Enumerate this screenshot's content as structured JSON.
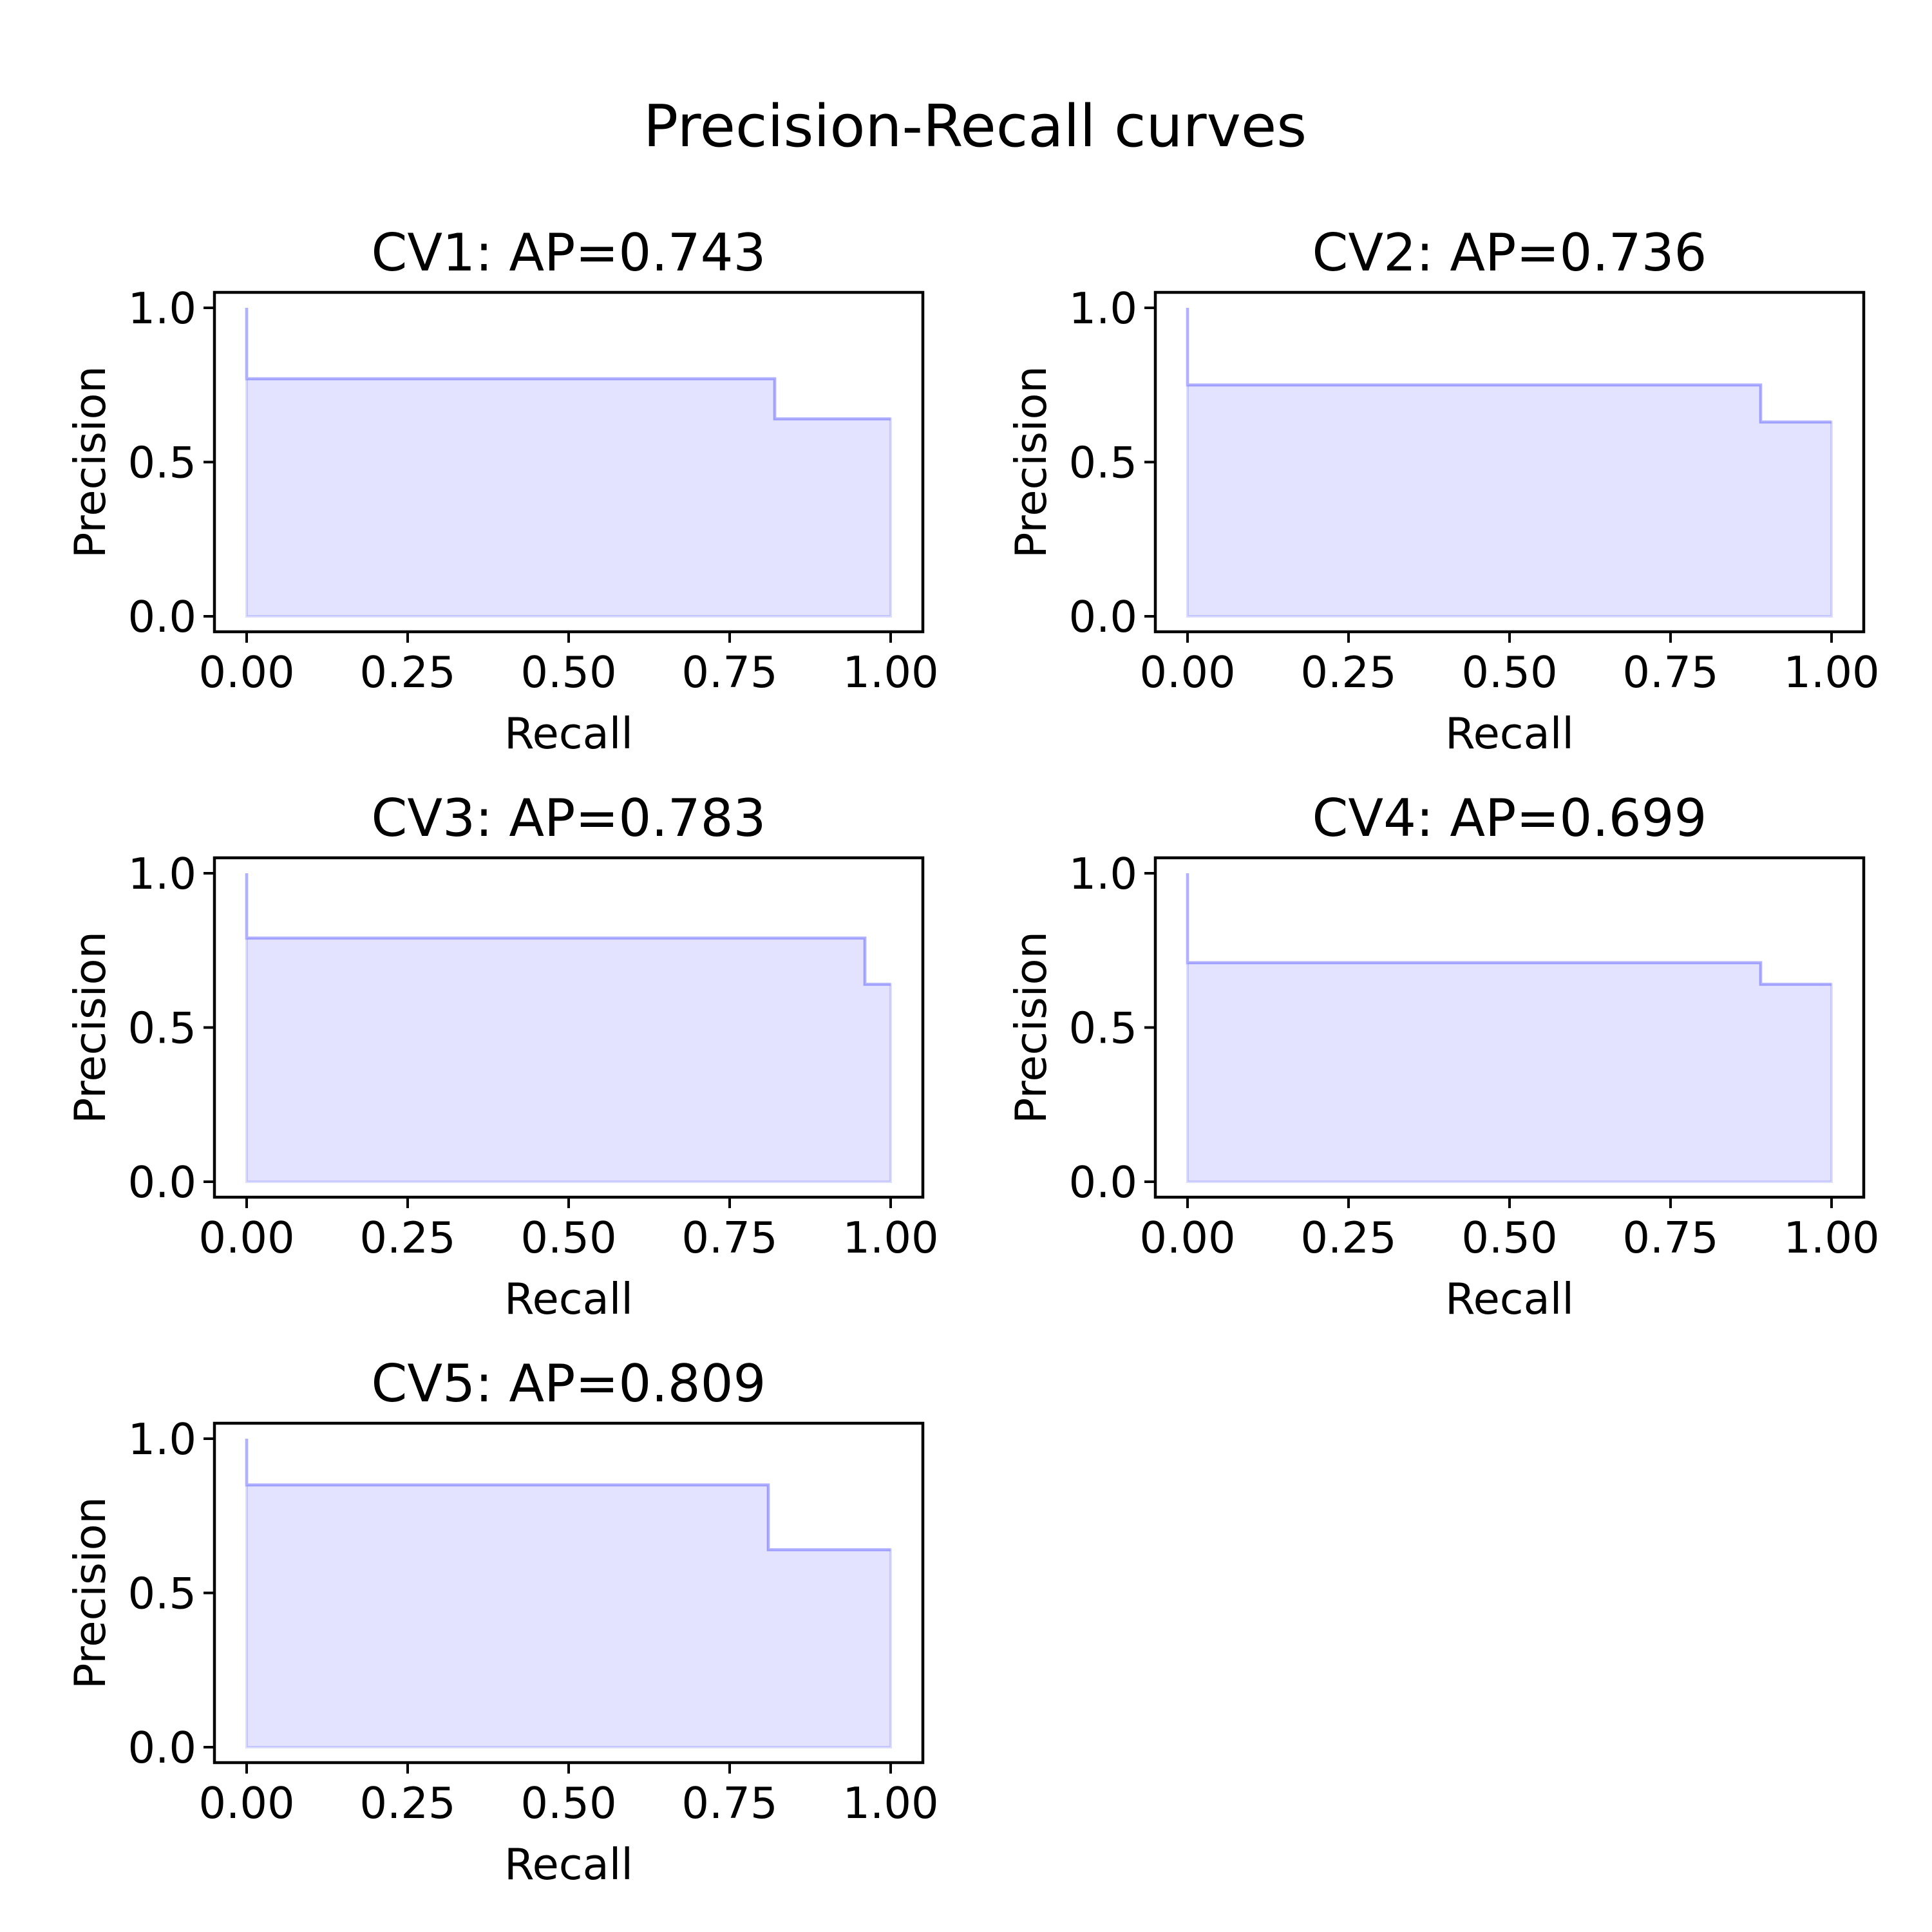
{
  "suptitle": "Precision-Recall curves",
  "chart_data": [
    {
      "type": "area",
      "title": "CV1: AP=0.743",
      "xlabel": "Recall",
      "ylabel": "Precision",
      "xlim": [
        -0.05,
        1.05
      ],
      "ylim": [
        -0.05,
        1.05
      ],
      "xticks": [
        0.0,
        0.25,
        0.5,
        0.75,
        1.0
      ],
      "xtick_labels": [
        "0.00",
        "0.25",
        "0.50",
        "0.75",
        "1.00"
      ],
      "yticks": [
        0.0,
        0.5,
        1.0
      ],
      "ytick_labels": [
        "0.0",
        "0.5",
        "1.0"
      ],
      "step": "post",
      "recall": [
        0.0,
        0.0,
        0.82,
        0.82,
        1.0
      ],
      "precision": [
        1.0,
        0.77,
        0.77,
        0.64,
        0.64
      ],
      "color": "#0000ff",
      "grid": false
    },
    {
      "type": "area",
      "title": "CV2: AP=0.736",
      "xlabel": "Recall",
      "ylabel": "Precision",
      "xlim": [
        -0.05,
        1.05
      ],
      "ylim": [
        -0.05,
        1.05
      ],
      "xticks": [
        0.0,
        0.25,
        0.5,
        0.75,
        1.0
      ],
      "xtick_labels": [
        "0.00",
        "0.25",
        "0.50",
        "0.75",
        "1.00"
      ],
      "yticks": [
        0.0,
        0.5,
        1.0
      ],
      "ytick_labels": [
        "0.0",
        "0.5",
        "1.0"
      ],
      "step": "post",
      "recall": [
        0.0,
        0.0,
        0.89,
        0.89,
        1.0
      ],
      "precision": [
        1.0,
        0.75,
        0.75,
        0.63,
        0.63
      ],
      "color": "#0000ff",
      "grid": false
    },
    {
      "type": "area",
      "title": "CV3: AP=0.783",
      "xlabel": "Recall",
      "ylabel": "Precision",
      "xlim": [
        -0.05,
        1.05
      ],
      "ylim": [
        -0.05,
        1.05
      ],
      "xticks": [
        0.0,
        0.25,
        0.5,
        0.75,
        1.0
      ],
      "xtick_labels": [
        "0.00",
        "0.25",
        "0.50",
        "0.75",
        "1.00"
      ],
      "yticks": [
        0.0,
        0.5,
        1.0
      ],
      "ytick_labels": [
        "0.0",
        "0.5",
        "1.0"
      ],
      "step": "post",
      "recall": [
        0.0,
        0.0,
        0.96,
        0.96,
        1.0
      ],
      "precision": [
        1.0,
        0.79,
        0.79,
        0.64,
        0.64
      ],
      "color": "#0000ff",
      "grid": false
    },
    {
      "type": "area",
      "title": "CV4: AP=0.699",
      "xlabel": "Recall",
      "ylabel": "Precision",
      "xlim": [
        -0.05,
        1.05
      ],
      "ylim": [
        -0.05,
        1.05
      ],
      "xticks": [
        0.0,
        0.25,
        0.5,
        0.75,
        1.0
      ],
      "xtick_labels": [
        "0.00",
        "0.25",
        "0.50",
        "0.75",
        "1.00"
      ],
      "yticks": [
        0.0,
        0.5,
        1.0
      ],
      "ytick_labels": [
        "0.0",
        "0.5",
        "1.0"
      ],
      "step": "post",
      "recall": [
        0.0,
        0.0,
        0.89,
        0.89,
        1.0
      ],
      "precision": [
        1.0,
        0.71,
        0.71,
        0.64,
        0.64
      ],
      "color": "#0000ff",
      "grid": false
    },
    {
      "type": "area",
      "title": "CV5: AP=0.809",
      "xlabel": "Recall",
      "ylabel": "Precision",
      "xlim": [
        -0.05,
        1.05
      ],
      "ylim": [
        -0.05,
        1.05
      ],
      "xticks": [
        0.0,
        0.25,
        0.5,
        0.75,
        1.0
      ],
      "xtick_labels": [
        "0.00",
        "0.25",
        "0.50",
        "0.75",
        "1.00"
      ],
      "yticks": [
        0.0,
        0.5,
        1.0
      ],
      "ytick_labels": [
        "0.0",
        "0.5",
        "1.0"
      ],
      "step": "post",
      "recall": [
        0.0,
        0.0,
        0.81,
        0.81,
        1.0
      ],
      "precision": [
        1.0,
        0.85,
        0.85,
        0.64,
        0.64
      ],
      "color": "#0000ff",
      "grid": false
    }
  ]
}
